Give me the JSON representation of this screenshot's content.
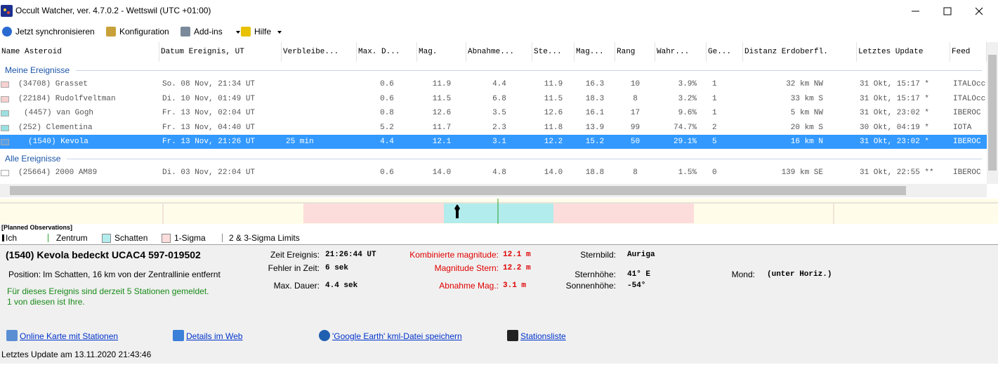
{
  "window": {
    "title": "Occult Watcher, ver. 4.7.0.2 - Wettswil (UTC +01:00)"
  },
  "toolbar": [
    "Jetzt synchronisieren",
    "Konfiguration",
    "Add-ins",
    "Hilfe"
  ],
  "table": {
    "columns": [
      "Name Asteroid",
      "Datum Ereignis, UT",
      "Verbleibe...",
      "Max. D...",
      "Mag.",
      "Abnahme...",
      "Ste...",
      "Mag...",
      "Rang",
      "Wahr...",
      "Ge...",
      "Distanz Erdoberfl.",
      "Letztes Update",
      "Feed"
    ],
    "groups": [
      {
        "name": "Meine Ereignisse",
        "rows": [
          [
            "(34708) Grasset",
            "So. 08 Nov, 21:34 UT",
            null,
            "0.6",
            "11.9",
            "4.4",
            "11.9",
            "16.3",
            "10",
            "3.9%",
            "1",
            "32 km NW",
            "31 Okt, 15:17 *",
            "ITALOcc"
          ],
          [
            "(22184) Rudolfveltman",
            "Di. 10 Nov, 01:49 UT",
            null,
            "0.6",
            "11.5",
            "6.8",
            "11.5",
            "18.3",
            "8",
            "3.2%",
            "1",
            "33 km S",
            "31 Okt, 15:17 *",
            "ITALOcc"
          ],
          [
            "(4457) van Gogh",
            "Fr. 13 Nov, 02:04 UT",
            null,
            "0.8",
            "12.6",
            "3.5",
            "12.6",
            "16.1",
            "17",
            "9.6%",
            "1",
            "5 km NW",
            "31 Okt, 23:02 *",
            "IBEROC"
          ],
          [
            "(252) Clementina",
            "Fr. 13 Nov, 04:40 UT",
            null,
            "5.2",
            "11.7",
            "2.3",
            "11.8",
            "13.9",
            "99",
            "74.7%",
            "2",
            "20 km S",
            "30 Okt, 04:19 *",
            "IOTA"
          ],
          [
            "(1540) Kevola",
            "Fr. 13 Nov, 21:26 UT",
            "25 min",
            "4.4",
            "12.1",
            "3.1",
            "12.2",
            "15.2",
            "50",
            "29.1%",
            "5",
            "16 km N",
            "31 Okt, 23:02 *",
            "IBEROC"
          ]
        ]
      },
      {
        "name": "Alle Ereignisse",
        "rows": [
          [
            "(25664) 2000 AM89",
            "Di. 03 Nov, 22:04 UT",
            null,
            "0.6",
            "14.0",
            "4.8",
            "14.0",
            "18.8",
            "8",
            "1.5%",
            "0",
            "139 km SE",
            "31 Okt, 22:55 **",
            "IBEROC"
          ]
        ]
      }
    ]
  },
  "timeline": {
    "heading": "[Planned Observations]",
    "legend": [
      "Ich",
      "Zentrum",
      "Schatten",
      "1-Sigma",
      "2 & 3-Sigma Limits"
    ]
  },
  "details": {
    "title": "(1540) Kevola bedeckt UCAC4 597-019502",
    "position_label": "Position:",
    "position": "Im Schatten, 16 km von der Zentrallinie entfernt",
    "stations": [
      "Für dieses Ereignis sind derzeit 5 Stationen gemeldet.",
      "1 von diesen ist Ihre."
    ],
    "fields": [
      [
        {
          "label": "Zeit Ereignis:",
          "value": "21:26:44 UT"
        },
        {
          "label": "Fehler in Zeit:",
          "value": "6 sek"
        },
        {
          "label": "Max. Dauer:",
          "value": "4.4 sek"
        }
      ],
      [
        {
          "label": "Kombinierte magnitude:",
          "value": "12.1 m"
        },
        {
          "label": "Magnitude Stern:",
          "value": "12.2 m"
        },
        {
          "label": "Abnahme Mag.:",
          "value": "3.1 m"
        }
      ],
      [
        {
          "label": "Sternbild:",
          "value": "Auriga"
        },
        {
          "label": "Sternhöhe:",
          "value": "41° E"
        },
        {
          "label": "Sonnenhöhe:",
          "value": "-54°"
        }
      ],
      [
        {
          "label": "Mond:",
          "value": "(unter Horiz.)"
        }
      ]
    ]
  },
  "links": [
    "Online Karte mit Stationen",
    "Details im Web",
    "'Google Earth' kml-Datei speichern",
    "Stationsliste"
  ],
  "status": "Letztes Update am 13.11.2020 21:43:46"
}
